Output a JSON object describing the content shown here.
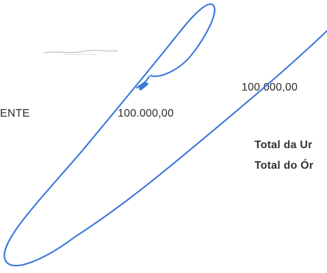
{
  "document": {
    "row_label_fragment": "ENTE",
    "row_value": "100.000,00",
    "top_value": "100.000,00",
    "total_unit_label_fragment": "Total da Ur",
    "total_organ_label_fragment": "Total do Ór"
  },
  "signature": {
    "ink_color": "#3b78d8"
  }
}
